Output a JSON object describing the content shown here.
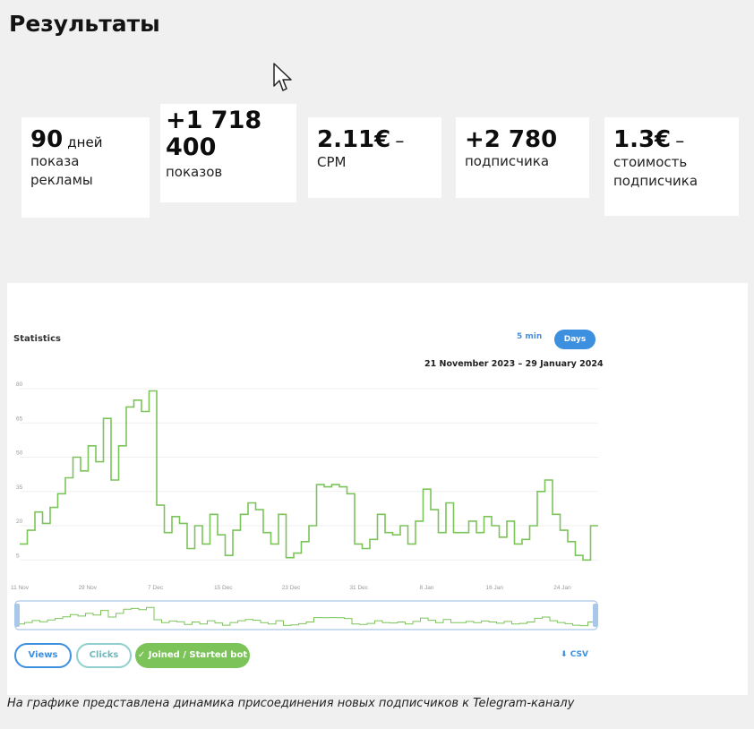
{
  "heading": "Результаты",
  "stats": [
    {
      "value": "90",
      "inline": "дней",
      "label": "показа рекламы"
    },
    {
      "value": "+1 718 400",
      "label": "показов"
    },
    {
      "value": "2.11€",
      "dash": "–",
      "label": "CPM"
    },
    {
      "value": "+2 780",
      "label": "подписчика"
    },
    {
      "value": "1.3€",
      "dash": "–",
      "label": "стоимость подписчика"
    }
  ],
  "widget": {
    "title": "Statistics",
    "toggle": [
      "5 min",
      "Days"
    ],
    "active_toggle": "Days",
    "date_range": "21 November 2023 – 29 January 2024",
    "tabs": [
      "Views",
      "Clicks",
      "✓ Joined / Started bot"
    ],
    "active_tab": "✓ Joined / Started bot",
    "csv_label": "CSV"
  },
  "caption": "На графике представлена динамика присоединения новых подписчиков к Telegram-каналу",
  "colors": {
    "line": "#7cc45a",
    "accent": "#3d8fe0",
    "clicks": "#8fcfd0",
    "background": "#f0f0f0"
  },
  "chart_data": {
    "type": "line",
    "step": true,
    "y_ticks": [
      "80",
      "65",
      "50",
      "35",
      "20",
      "5"
    ],
    "x_ticks": [
      "11 Nov",
      "29 Nov",
      "7 Dec",
      "15 Dec",
      "23 Dec",
      "31 Dec",
      "8 Jan",
      "16 Jan",
      "24 Jan"
    ],
    "ylim": [
      0,
      80
    ],
    "series": [
      {
        "values": [
          12,
          18,
          26,
          21,
          28,
          34,
          41,
          50,
          44,
          55,
          48,
          67,
          40,
          55,
          72,
          75,
          70,
          79,
          29,
          17,
          24,
          21,
          10,
          20,
          12,
          25,
          16,
          7,
          18,
          25,
          30,
          27,
          17,
          12,
          25,
          6,
          8,
          13,
          20,
          38,
          37,
          38,
          37,
          34,
          12,
          10,
          14,
          25,
          17,
          16,
          20,
          12,
          22,
          36,
          27,
          17,
          30,
          17,
          17,
          22,
          17,
          24,
          20,
          15,
          22,
          12,
          14,
          20,
          35,
          40,
          25,
          18,
          13,
          7,
          5,
          20
        ]
      }
    ]
  }
}
